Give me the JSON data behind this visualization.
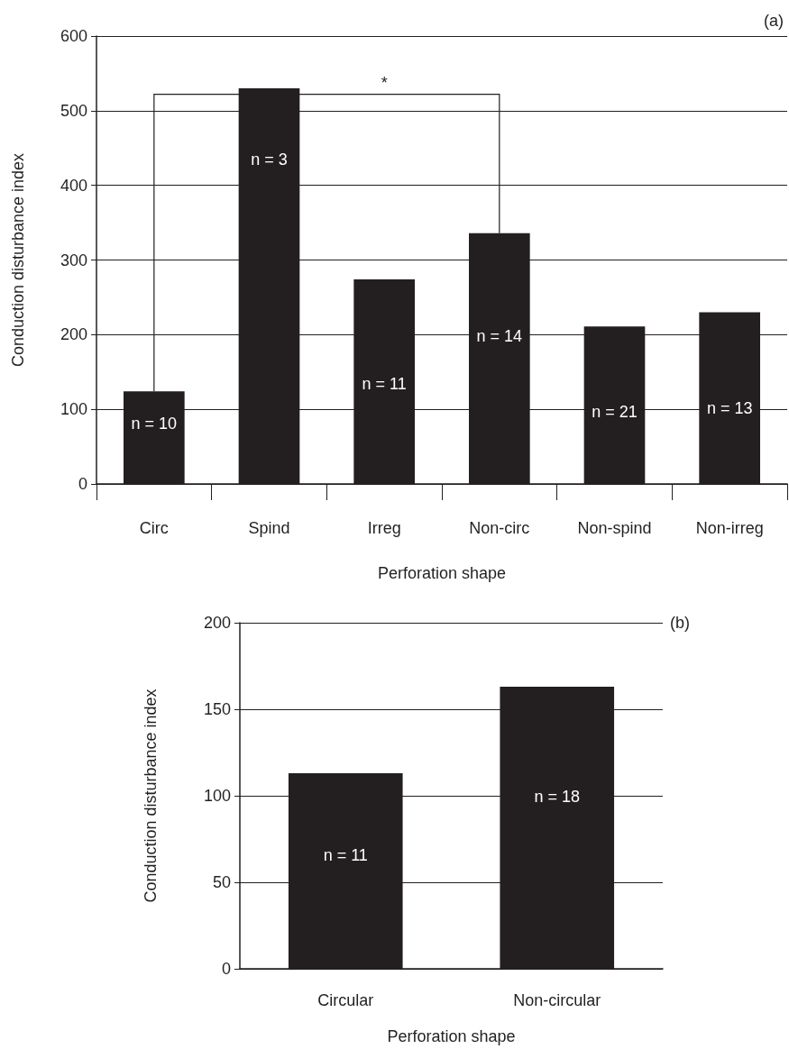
{
  "chart_data": [
    {
      "type": "bar",
      "xlabel": "Perforation shape",
      "ylabel": "Conduction disturbance index",
      "categories": [
        "Circ",
        "Spind",
        "Irreg",
        "Non-circ",
        "Non-spind",
        "Non-irreg"
      ],
      "values": [
        124,
        530,
        274,
        336,
        211,
        230
      ],
      "color": "#231f20",
      "ylim": [
        0,
        600
      ],
      "yticks": [
        0,
        100,
        200,
        300,
        400,
        500,
        600
      ],
      "grid": "y",
      "annotations": [
        "(a)",
        "*",
        "n = 10",
        "n = 3",
        "n = 11",
        "n = 14",
        "n = 21",
        "n = 13"
      ]
    },
    {
      "type": "bar",
      "xlabel": "Perforation shape",
      "ylabel": "Conduction disturbance index",
      "categories": [
        "Circular",
        "Non-circular"
      ],
      "values": [
        113,
        163
      ],
      "color": "#231f20",
      "ylim": [
        0,
        200
      ],
      "yticks": [
        0,
        50,
        100,
        150,
        200
      ],
      "grid": "y",
      "annotations": [
        "(b)",
        "n = 11",
        "n = 18"
      ]
    }
  ]
}
